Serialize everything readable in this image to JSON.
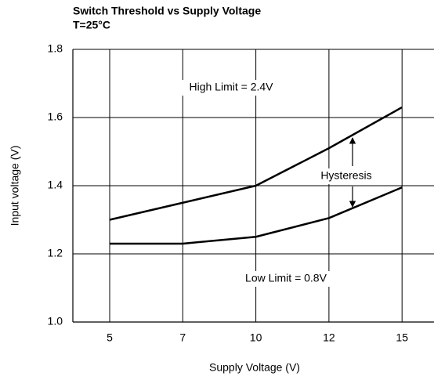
{
  "chart_data": {
    "type": "line",
    "title": "Switch Threshold vs Supply Voltage",
    "subtitle": "T=25°C",
    "x_label": "Supply Voltage (V)",
    "y_label": "Input voltage (V)",
    "categories": [
      "5",
      "7",
      "10",
      "12",
      "15"
    ],
    "series": [
      {
        "color": "#000000",
        "values": [
          1.3,
          1.35,
          1.4,
          1.51,
          1.63
        ]
      },
      {
        "color": "#000000",
        "values": [
          1.23,
          1.23,
          1.25,
          1.305,
          1.395
        ]
      }
    ],
    "ylim": [
      1.0,
      1.8
    ],
    "yticks": [
      {
        "value": 1.0,
        "label": "1.0"
      },
      1.2,
      1.4,
      1.6,
      1.8
    ],
    "grid": true,
    "annotations": [
      "High Limit = 2.4V",
      "Hysteresis",
      "Low Limit = 0.8V"
    ]
  }
}
